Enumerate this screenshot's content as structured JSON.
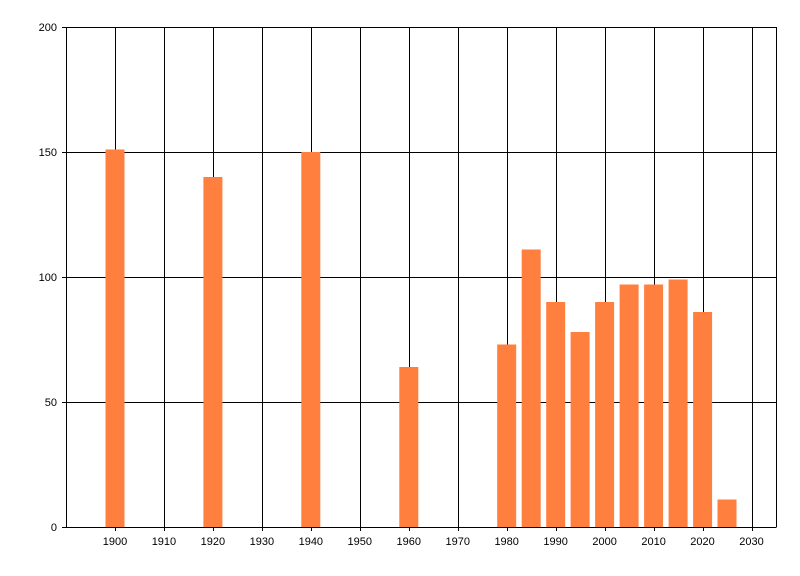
{
  "chart_data": {
    "type": "bar",
    "x": [
      1900,
      1920,
      1940,
      1960,
      1980,
      1985,
      1990,
      1995,
      2000,
      2005,
      2010,
      2015,
      2020,
      2025
    ],
    "values": [
      151,
      140,
      150,
      64,
      73,
      111,
      90,
      78,
      90,
      97,
      97,
      99,
      86,
      11
    ],
    "xlim": [
      1890,
      2035
    ],
    "ylim": [
      0,
      200
    ],
    "xticks": [
      1900,
      1910,
      1920,
      1930,
      1940,
      1950,
      1960,
      1970,
      1980,
      1990,
      2000,
      2010,
      2020,
      2030
    ],
    "yticks": [
      0,
      50,
      100,
      150,
      200
    ],
    "bar_color": "#ff7f3f",
    "grid": true,
    "title": "",
    "xlabel": "",
    "ylabel": ""
  }
}
